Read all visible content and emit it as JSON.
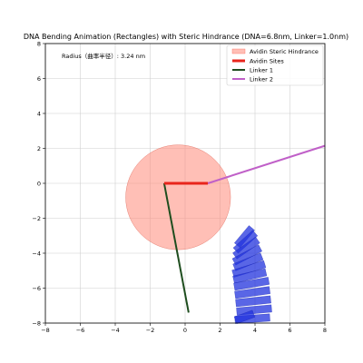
{
  "chart_data": {
    "type": "scatter",
    "title": "DNA Bending Animation (Rectangles) with Steric Hindrance (DNA=6.8nm, Linker=1.0nm)",
    "xlabel": "",
    "ylabel": "",
    "xlim": [
      -8,
      8
    ],
    "ylim": [
      -8,
      8
    ],
    "x_ticks": [
      -8,
      -6,
      -4,
      -2,
      0,
      2,
      4,
      6,
      8
    ],
    "y_ticks": [
      -8,
      -6,
      -4,
      -2,
      0,
      2,
      4,
      6,
      8
    ],
    "grid": true,
    "legend_position": "upper right",
    "annotation": "Radius（曲率半径）: 3.24 nm",
    "steric_circle": {
      "name": "Avidin Steric Hindrance",
      "center": [
        -0.4,
        -0.8
      ],
      "radius": 3.0,
      "color": "#ff8a7a"
    },
    "avidin_sites": {
      "name": "Avidin Sites",
      "color": "#e8251c",
      "x": [
        -1.2,
        1.3
      ],
      "y": [
        0.0,
        0.0
      ]
    },
    "linker1": {
      "name": "Linker 1",
      "color": "#1e4d1e",
      "x": [
        -1.2,
        0.2
      ],
      "y": [
        0.0,
        -7.4
      ]
    },
    "linker2": {
      "name": "Linker 2",
      "color": "#c060c8",
      "x": [
        1.3,
        8.0
      ],
      "y": [
        0.0,
        2.15
      ]
    },
    "dna_rectangles": {
      "color": "#2233dd",
      "width": 0.42,
      "items": [
        {
          "cx": 3.4,
          "cy": -3.05,
          "len": 1.3,
          "angle": 50
        },
        {
          "cx": 3.45,
          "cy": -3.35,
          "len": 1.5,
          "angle": 42
        },
        {
          "cx": 3.5,
          "cy": -3.7,
          "len": 1.6,
          "angle": 35
        },
        {
          "cx": 3.55,
          "cy": -4.1,
          "len": 1.7,
          "angle": 28
        },
        {
          "cx": 3.6,
          "cy": -4.5,
          "len": 1.7,
          "angle": 22
        },
        {
          "cx": 3.65,
          "cy": -4.9,
          "len": 1.9,
          "angle": 17
        },
        {
          "cx": 3.7,
          "cy": -5.3,
          "len": 1.9,
          "angle": 13
        },
        {
          "cx": 3.8,
          "cy": -5.75,
          "len": 2.0,
          "angle": 10
        },
        {
          "cx": 3.85,
          "cy": -6.25,
          "len": 2.0,
          "angle": 8
        },
        {
          "cx": 3.9,
          "cy": -6.75,
          "len": 2.0,
          "angle": 6
        },
        {
          "cx": 3.95,
          "cy": -7.25,
          "len": 2.0,
          "angle": 5
        },
        {
          "cx": 3.85,
          "cy": -7.75,
          "len": 2.0,
          "angle": 4
        },
        {
          "cx": 3.4,
          "cy": -7.65,
          "len": 1.1,
          "angle": 20
        }
      ]
    }
  }
}
